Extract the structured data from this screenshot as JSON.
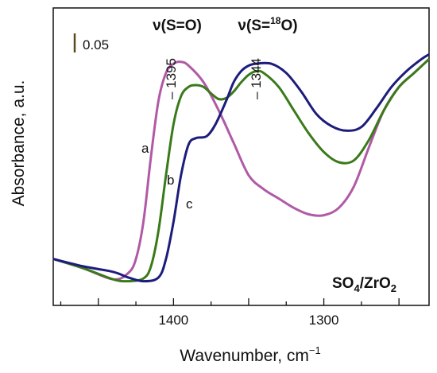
{
  "chart_data": {
    "type": "line",
    "xlabel": "Wavenumber, cm",
    "xlabel_superscript": "−1",
    "ylabel": "Absorbance, a.u.",
    "xlim": [
      1480,
      1230
    ],
    "x_reversed": true,
    "x_ticks": [
      1400,
      1300
    ],
    "y_axis_numeric": false,
    "scale_bar": {
      "label": "0.05",
      "value": 0.05,
      "color": "#5a4a1a"
    },
    "annotations": {
      "so_label": "ν(S=O)",
      "so18_prefix": "ν(S=",
      "so18_sup": "18",
      "so18_suffix": "O)",
      "peak1": "1395",
      "peak2": "1344",
      "sample_prefix": "SO",
      "sample_sub1": "4",
      "sample_mid": "/ZrO",
      "sample_sub2": "2"
    },
    "series": [
      {
        "name": "a",
        "color": "#b05aa6",
        "points": [
          [
            1480,
            0.02
          ],
          [
            1460,
            0.01
          ],
          [
            1440,
            -0.002
          ],
          [
            1430,
            0.005
          ],
          [
            1425,
            0.02
          ],
          [
            1420,
            0.06
          ],
          [
            1415,
            0.13
          ],
          [
            1410,
            0.19
          ],
          [
            1405,
            0.22
          ],
          [
            1400,
            0.23
          ],
          [
            1395,
            0.232
          ],
          [
            1390,
            0.228
          ],
          [
            1380,
            0.21
          ],
          [
            1370,
            0.18
          ],
          [
            1360,
            0.145
          ],
          [
            1350,
            0.11
          ],
          [
            1340,
            0.095
          ],
          [
            1330,
            0.085
          ],
          [
            1320,
            0.075
          ],
          [
            1310,
            0.068
          ],
          [
            1300,
            0.067
          ],
          [
            1290,
            0.075
          ],
          [
            1280,
            0.098
          ],
          [
            1270,
            0.14
          ],
          [
            1260,
            0.18
          ],
          [
            1250,
            0.205
          ],
          [
            1240,
            0.22
          ],
          [
            1230,
            0.235
          ]
        ]
      },
      {
        "name": "b",
        "color": "#3a7a1a",
        "points": [
          [
            1480,
            0.02
          ],
          [
            1460,
            0.01
          ],
          [
            1440,
            -0.002
          ],
          [
            1430,
            -0.004
          ],
          [
            1420,
            -0.001
          ],
          [
            1415,
            0.012
          ],
          [
            1410,
            0.05
          ],
          [
            1405,
            0.11
          ],
          [
            1400,
            0.165
          ],
          [
            1395,
            0.195
          ],
          [
            1390,
            0.205
          ],
          [
            1385,
            0.207
          ],
          [
            1380,
            0.205
          ],
          [
            1375,
            0.198
          ],
          [
            1370,
            0.192
          ],
          [
            1365,
            0.193
          ],
          [
            1360,
            0.2
          ],
          [
            1355,
            0.21
          ],
          [
            1350,
            0.218
          ],
          [
            1345,
            0.222
          ],
          [
            1340,
            0.22
          ],
          [
            1330,
            0.205
          ],
          [
            1320,
            0.18
          ],
          [
            1310,
            0.155
          ],
          [
            1300,
            0.135
          ],
          [
            1290,
            0.124
          ],
          [
            1280,
            0.126
          ],
          [
            1270,
            0.148
          ],
          [
            1260,
            0.18
          ],
          [
            1250,
            0.205
          ],
          [
            1240,
            0.22
          ],
          [
            1230,
            0.235
          ]
        ]
      },
      {
        "name": "c",
        "color": "#1c1c7c",
        "points": [
          [
            1480,
            0.02
          ],
          [
            1460,
            0.012
          ],
          [
            1440,
            0.006
          ],
          [
            1430,
            0.0
          ],
          [
            1420,
            -0.004
          ],
          [
            1410,
            0.0
          ],
          [
            1405,
            0.02
          ],
          [
            1400,
            0.06
          ],
          [
            1395,
            0.11
          ],
          [
            1390,
            0.143
          ],
          [
            1385,
            0.15
          ],
          [
            1378,
            0.152
          ],
          [
            1372,
            0.165
          ],
          [
            1365,
            0.19
          ],
          [
            1360,
            0.21
          ],
          [
            1355,
            0.222
          ],
          [
            1350,
            0.228
          ],
          [
            1345,
            0.23
          ],
          [
            1335,
            0.23
          ],
          [
            1325,
            0.22
          ],
          [
            1315,
            0.2
          ],
          [
            1305,
            0.176
          ],
          [
            1295,
            0.163
          ],
          [
            1285,
            0.158
          ],
          [
            1275,
            0.162
          ],
          [
            1265,
            0.182
          ],
          [
            1255,
            0.205
          ],
          [
            1245,
            0.222
          ],
          [
            1235,
            0.235
          ],
          [
            1230,
            0.24
          ]
        ]
      }
    ],
    "curve_labels": [
      "a",
      "b",
      "c"
    ]
  }
}
